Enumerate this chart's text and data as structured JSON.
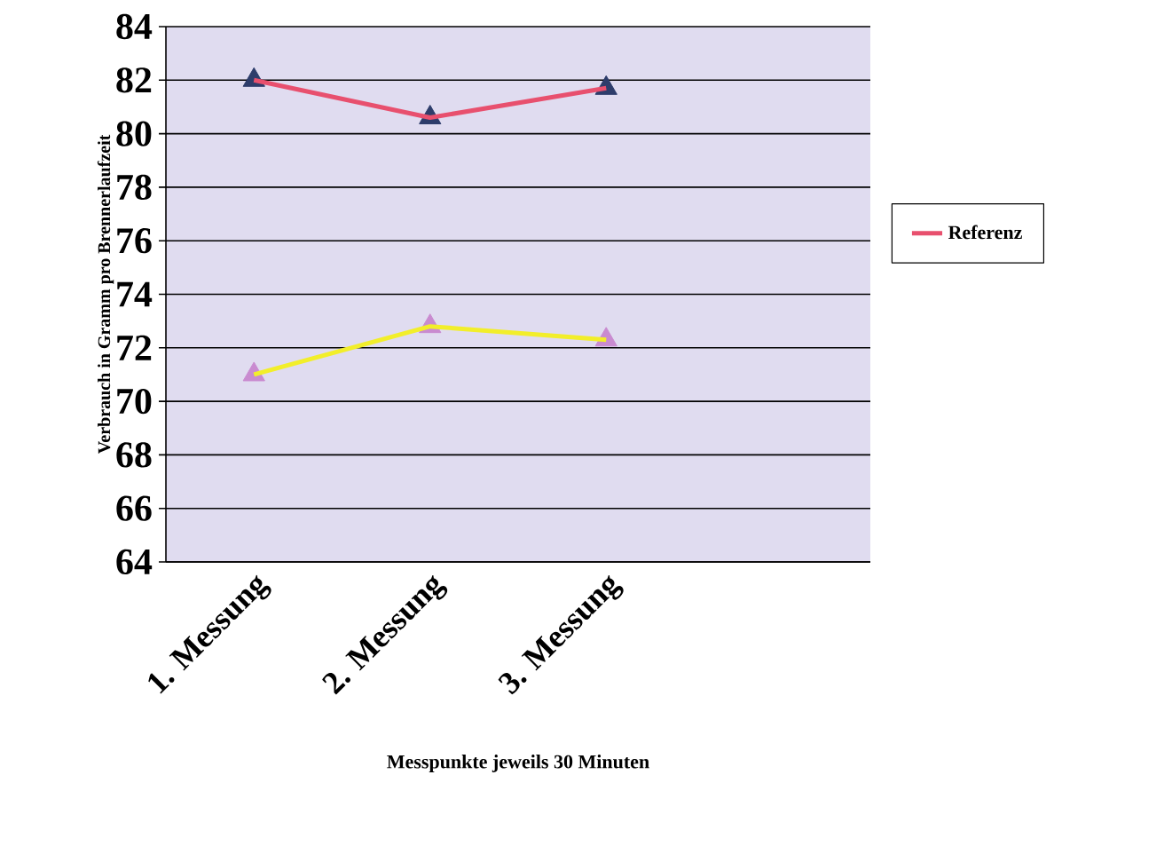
{
  "chart_data": {
    "type": "line",
    "xlabel": "Messpunkte jeweils 30 Minuten",
    "ylabel": "Verbrauch in Gramm pro Brennerlaufzeit",
    "categories": [
      "1. Messung",
      "2. Messung",
      "3. Messung",
      null
    ],
    "series": [
      {
        "name": "Referenz",
        "color": "#e8506e",
        "values": [
          82.0,
          80.6,
          81.7,
          null
        ]
      },
      {
        "color": "#f2ee2a",
        "values": [
          71.0,
          72.8,
          72.3,
          null
        ]
      }
    ],
    "ylim": [
      64,
      84
    ],
    "yticks": [
      64,
      66,
      68,
      70,
      72,
      74,
      76,
      78,
      80,
      82,
      84
    ],
    "grid": "y",
    "legend": "right",
    "marker": "triangle",
    "line_style": "solid"
  }
}
